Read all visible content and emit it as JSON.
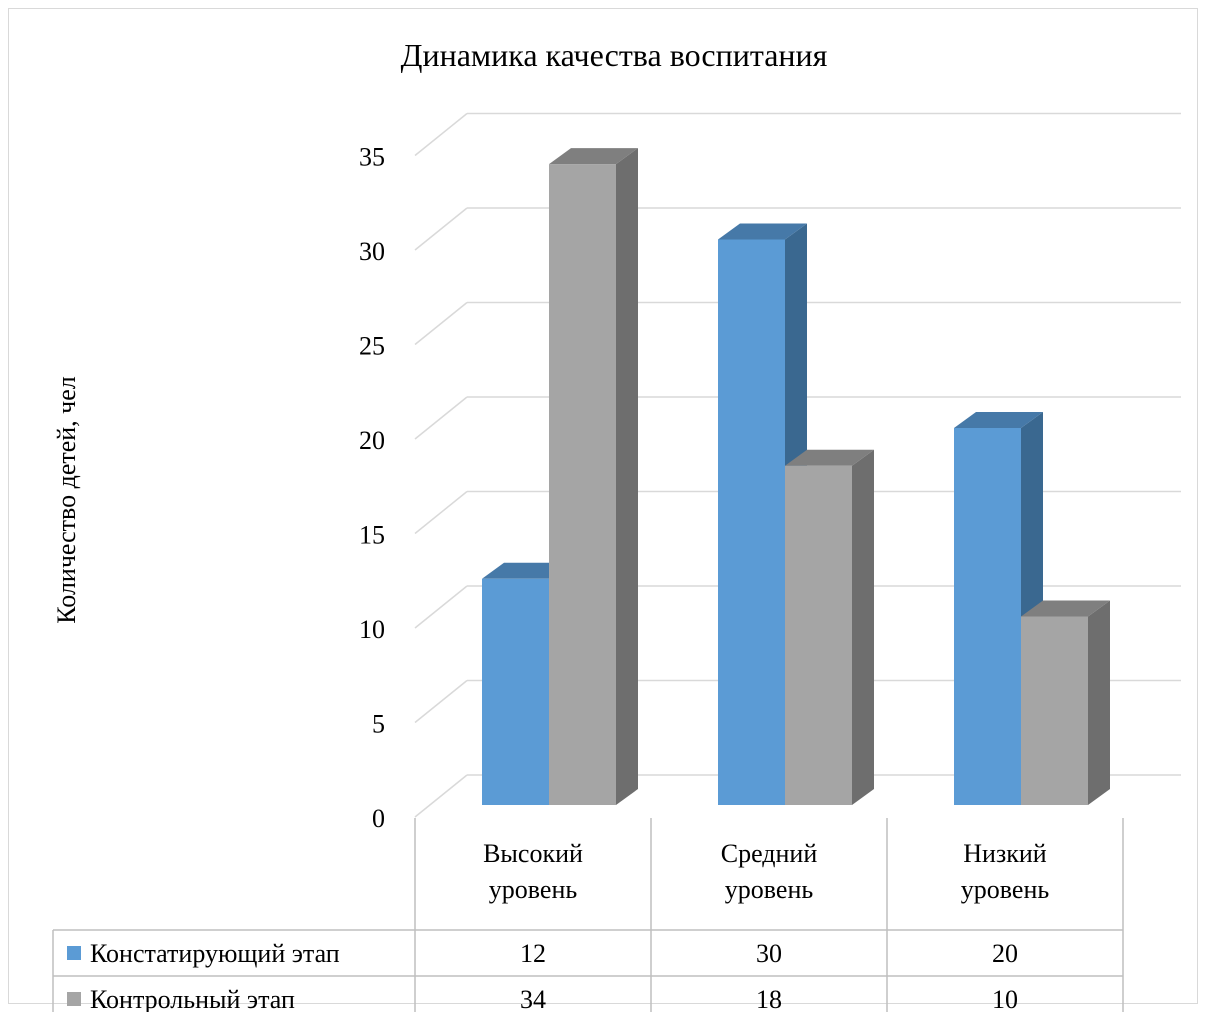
{
  "chart_data": {
    "type": "bar",
    "title": "Динамика качества воспитания",
    "xlabel": "",
    "ylabel": "Количество детей, чел",
    "ylim": [
      0,
      35
    ],
    "yticks": [
      0,
      5,
      10,
      15,
      20,
      25,
      30,
      35
    ],
    "categories": [
      [
        "Высокий",
        "уровень"
      ],
      [
        "Средний",
        "уровень"
      ],
      [
        "Низкий",
        "уровень"
      ]
    ],
    "series": [
      {
        "name": "Констатирующий этап",
        "values": [
          12,
          30,
          20
        ],
        "color": "#5b9bd5",
        "side_color": "#3a6890",
        "top_color": "#4679a8"
      },
      {
        "name": "Контрольный этап",
        "values": [
          34,
          18,
          10
        ],
        "color": "#a5a5a5",
        "side_color": "#6e6e6e",
        "top_color": "#7f7f7f"
      }
    ],
    "style": "3d-clustered-column",
    "data_table": true,
    "legend": "data-table",
    "grid": true
  }
}
